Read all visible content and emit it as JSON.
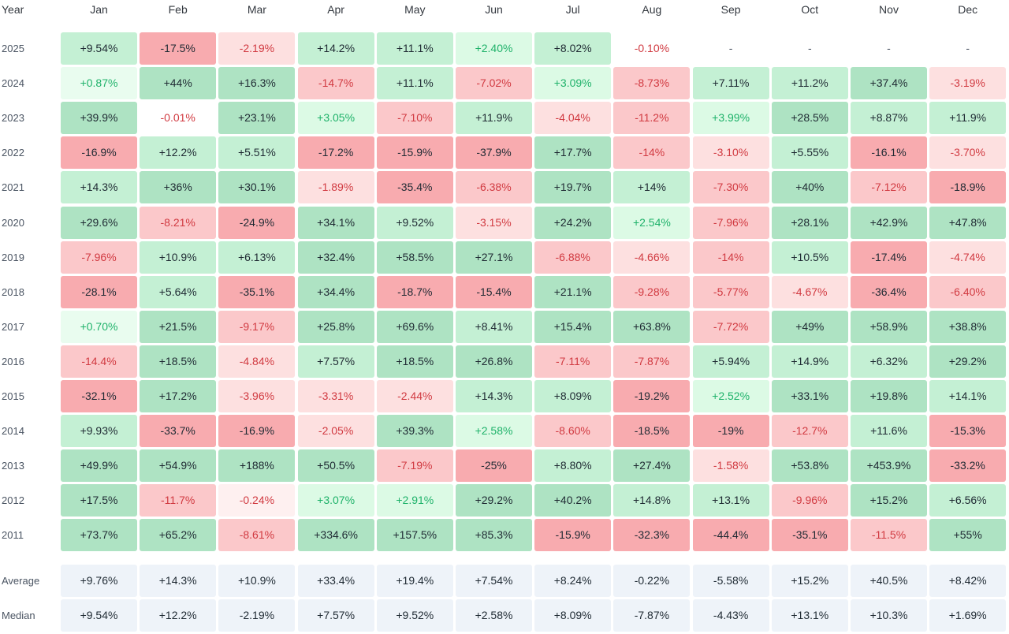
{
  "chart_data": {
    "type": "heatmap",
    "year_header": "Year",
    "months": [
      "Jan",
      "Feb",
      "Mar",
      "Apr",
      "May",
      "Jun",
      "Jul",
      "Aug",
      "Sep",
      "Oct",
      "Nov",
      "Dec"
    ],
    "rows": [
      {
        "year": "2025",
        "values": [
          "+9.54%",
          "-17.5%",
          "-2.19%",
          "+14.2%",
          "+11.1%",
          "+2.40%",
          "+8.02%",
          "-0.10%",
          "-",
          "-",
          "-",
          "-"
        ]
      },
      {
        "year": "2024",
        "values": [
          "+0.87%",
          "+44%",
          "+16.3%",
          "-14.7%",
          "+11.1%",
          "-7.02%",
          "+3.09%",
          "-8.73%",
          "+7.11%",
          "+11.2%",
          "+37.4%",
          "-3.19%"
        ]
      },
      {
        "year": "2023",
        "values": [
          "+39.9%",
          "-0.01%",
          "+23.1%",
          "+3.05%",
          "-7.10%",
          "+11.9%",
          "-4.04%",
          "-11.2%",
          "+3.99%",
          "+28.5%",
          "+8.87%",
          "+11.9%"
        ]
      },
      {
        "year": "2022",
        "values": [
          "-16.9%",
          "+12.2%",
          "+5.51%",
          "-17.2%",
          "-15.9%",
          "-37.9%",
          "+17.7%",
          "-14%",
          "-3.10%",
          "+5.55%",
          "-16.1%",
          "-3.70%"
        ]
      },
      {
        "year": "2021",
        "values": [
          "+14.3%",
          "+36%",
          "+30.1%",
          "-1.89%",
          "-35.4%",
          "-6.38%",
          "+19.7%",
          "+14%",
          "-7.30%",
          "+40%",
          "-7.12%",
          "-18.9%"
        ]
      },
      {
        "year": "2020",
        "values": [
          "+29.6%",
          "-8.21%",
          "-24.9%",
          "+34.1%",
          "+9.52%",
          "-3.15%",
          "+24.2%",
          "+2.54%",
          "-7.96%",
          "+28.1%",
          "+42.9%",
          "+47.8%"
        ]
      },
      {
        "year": "2019",
        "values": [
          "-7.96%",
          "+10.9%",
          "+6.13%",
          "+32.4%",
          "+58.5%",
          "+27.1%",
          "-6.88%",
          "-4.66%",
          "-14%",
          "+10.5%",
          "-17.4%",
          "-4.74%"
        ]
      },
      {
        "year": "2018",
        "values": [
          "-28.1%",
          "+5.64%",
          "-35.1%",
          "+34.4%",
          "-18.7%",
          "-15.4%",
          "+21.1%",
          "-9.28%",
          "-5.77%",
          "-4.67%",
          "-36.4%",
          "-6.40%"
        ]
      },
      {
        "year": "2017",
        "values": [
          "+0.70%",
          "+21.5%",
          "-9.17%",
          "+25.8%",
          "+69.6%",
          "+8.41%",
          "+15.4%",
          "+63.8%",
          "-7.72%",
          "+49%",
          "+58.9%",
          "+38.8%"
        ]
      },
      {
        "year": "2016",
        "values": [
          "-14.4%",
          "+18.5%",
          "-4.84%",
          "+7.57%",
          "+18.5%",
          "+26.8%",
          "-7.11%",
          "-7.87%",
          "+5.94%",
          "+14.9%",
          "+6.32%",
          "+29.2%"
        ]
      },
      {
        "year": "2015",
        "values": [
          "-32.1%",
          "+17.2%",
          "-3.96%",
          "-3.31%",
          "-2.44%",
          "+14.3%",
          "+8.09%",
          "-19.2%",
          "+2.52%",
          "+33.1%",
          "+19.8%",
          "+14.1%"
        ]
      },
      {
        "year": "2014",
        "values": [
          "+9.93%",
          "-33.7%",
          "-16.9%",
          "-2.05%",
          "+39.3%",
          "+2.58%",
          "-8.60%",
          "-18.5%",
          "-19%",
          "-12.7%",
          "+11.6%",
          "-15.3%"
        ]
      },
      {
        "year": "2013",
        "values": [
          "+49.9%",
          "+54.9%",
          "+188%",
          "+50.5%",
          "-7.19%",
          "-25%",
          "+8.80%",
          "+27.4%",
          "-1.58%",
          "+53.8%",
          "+453.9%",
          "-33.2%"
        ]
      },
      {
        "year": "2012",
        "values": [
          "+17.5%",
          "-11.7%",
          "-0.24%",
          "+3.07%",
          "+2.91%",
          "+29.2%",
          "+40.2%",
          "+14.8%",
          "+13.1%",
          "-9.96%",
          "+15.2%",
          "+6.56%"
        ]
      },
      {
        "year": "2011",
        "values": [
          "+73.7%",
          "+65.2%",
          "-8.61%",
          "+334.6%",
          "+157.5%",
          "+85.3%",
          "-15.9%",
          "-32.3%",
          "-44.4%",
          "-35.1%",
          "-11.5%",
          "+55%"
        ]
      }
    ],
    "summary": [
      {
        "label": "Average",
        "values": [
          "+9.76%",
          "+14.3%",
          "+10.9%",
          "+33.4%",
          "+19.4%",
          "+7.54%",
          "+8.24%",
          "-0.22%",
          "-5.58%",
          "+15.2%",
          "+40.5%",
          "+8.42%"
        ]
      },
      {
        "label": "Median",
        "values": [
          "+9.54%",
          "+12.2%",
          "-2.19%",
          "+7.57%",
          "+9.52%",
          "+2.58%",
          "+8.09%",
          "-7.87%",
          "-4.43%",
          "+13.1%",
          "+10.3%",
          "+1.69%"
        ]
      }
    ],
    "colors": {
      "strong_green": "#aee3c3",
      "mid_green": "#c4f0d4",
      "light_green": "#dcfae5",
      "faint_green": "#e9fcef",
      "strong_red": "#f8abaf",
      "mid_red": "#fbc8ca",
      "light_red": "#fde0e0",
      "faint_red": "#fef0f0",
      "summary_bg": "#eef3f9",
      "positive_text": "#1fb26a",
      "negative_text": "#d13a41"
    }
  }
}
